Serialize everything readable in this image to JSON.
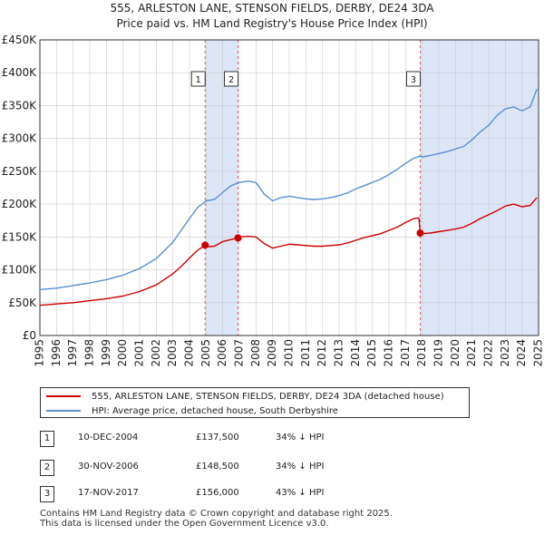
{
  "header": {
    "title_line1": "555, ARLESTON LANE, STENSON FIELDS, DERBY, DE24 3DA",
    "title_line2": "Price paid vs. HM Land Registry's House Price Index (HPI)"
  },
  "colors": {
    "property": "#cc0000",
    "hpi": "#5b8fd0",
    "shade": "#dde6f7",
    "grid": "#cccccc",
    "marker_line": "#d06060"
  },
  "legend": {
    "property_label": "555, ARLESTON LANE, STENSON FIELDS, DERBY, DE24 3DA (detached house)",
    "hpi_label": "HPI: Average price, detached house, South Derbyshire"
  },
  "transactions": [
    {
      "num": "1",
      "date": "10-DEC-2004",
      "price": "£137,500",
      "hpi": "34% ↓ HPI"
    },
    {
      "num": "2",
      "date": "30-NOV-2006",
      "price": "£148,500",
      "hpi": "34% ↓ HPI"
    },
    {
      "num": "3",
      "date": "17-NOV-2017",
      "price": "£156,000",
      "hpi": "43% ↓ HPI"
    }
  ],
  "footer": {
    "line1": "Contains HM Land Registry data © Crown copyright and database right 2025.",
    "line2": "This data is licensed under the Open Government Licence v3.0."
  },
  "chart_data": {
    "type": "line",
    "title": "555, ARLESTON LANE, STENSON FIELDS, DERBY, DE24 3DA — Price paid vs. HM Land Registry's House Price Index (HPI)",
    "xlim": [
      1995,
      2025
    ],
    "ylim": [
      0,
      450000
    ],
    "x_ticks": [
      1995,
      1996,
      1997,
      1998,
      1999,
      2000,
      2001,
      2002,
      2003,
      2004,
      2005,
      2006,
      2007,
      2008,
      2009,
      2010,
      2011,
      2012,
      2013,
      2014,
      2015,
      2016,
      2017,
      2018,
      2019,
      2020,
      2021,
      2022,
      2023,
      2024,
      2025
    ],
    "y_ticks": [
      {
        "value": 0,
        "label": "£0"
      },
      {
        "value": 50000,
        "label": "£50K"
      },
      {
        "value": 100000,
        "label": "£100K"
      },
      {
        "value": 150000,
        "label": "£150K"
      },
      {
        "value": 200000,
        "label": "£200K"
      },
      {
        "value": 250000,
        "label": "£250K"
      },
      {
        "value": 300000,
        "label": "£300K"
      },
      {
        "value": 350000,
        "label": "£350K"
      },
      {
        "value": 400000,
        "label": "£400K"
      },
      {
        "value": 450000,
        "label": "£450K"
      }
    ],
    "shaded_ranges": [
      [
        2004.94,
        2006.92
      ],
      [
        2017.88,
        2025
      ]
    ],
    "sales": [
      {
        "label": "1",
        "x": 2004.94,
        "y": 137500
      },
      {
        "label": "2",
        "x": 2006.92,
        "y": 148500
      },
      {
        "label": "3",
        "x": 2017.88,
        "y": 156000
      }
    ],
    "series": [
      {
        "name": "HPI: Average price, detached house, South Derbyshire",
        "color": "#5b8fd0",
        "x": [
          1995,
          1996,
          1997,
          1998,
          1999,
          2000,
          2001,
          2002,
          2003,
          2003.5,
          2004,
          2004.5,
          2005,
          2005.5,
          2006,
          2006.5,
          2007,
          2007.5,
          2008,
          2008.5,
          2009,
          2009.5,
          2010,
          2010.5,
          2011,
          2011.5,
          2012,
          2012.5,
          2013,
          2013.5,
          2014,
          2014.5,
          2015,
          2015.5,
          2016,
          2016.5,
          2017,
          2017.5,
          2017.88,
          2018,
          2018.5,
          2019,
          2019.5,
          2020,
          2020.5,
          2021,
          2021.5,
          2022,
          2022.5,
          2023,
          2023.5,
          2024,
          2024.5,
          2024.9
        ],
        "y": [
          70000,
          72000,
          76000,
          80000,
          85000,
          92000,
          102000,
          117000,
          142000,
          160000,
          178000,
          195000,
          205000,
          207000,
          218000,
          228000,
          233000,
          235000,
          233000,
          215000,
          205000,
          210000,
          212000,
          210000,
          208000,
          207000,
          208000,
          210000,
          213000,
          217000,
          223000,
          228000,
          233000,
          238000,
          245000,
          253000,
          262000,
          270000,
          273000,
          272000,
          274000,
          277000,
          280000,
          284000,
          288000,
          298000,
          310000,
          320000,
          335000,
          345000,
          348000,
          342000,
          348000,
          375000
        ]
      },
      {
        "name": "555, ARLESTON LANE, STENSON FIELDS, DERBY, DE24 3DA (detached house)",
        "color": "#cc0000",
        "x": [
          1995,
          1996,
          1997,
          1998,
          1999,
          2000,
          2001,
          2002,
          2003,
          2003.5,
          2004,
          2004.5,
          2004.94,
          2005,
          2005.5,
          2006,
          2006.5,
          2006.92,
          2007,
          2007.5,
          2008,
          2008.5,
          2009,
          2009.5,
          2010,
          2010.5,
          2011,
          2011.5,
          2012,
          2012.5,
          2013,
          2013.5,
          2014,
          2014.5,
          2015,
          2015.5,
          2016,
          2016.5,
          2017,
          2017.5,
          2017.8,
          2017.88,
          2018,
          2018.5,
          2019,
          2019.5,
          2020,
          2020.5,
          2021,
          2021.5,
          2022,
          2022.5,
          2023,
          2023.5,
          2024,
          2024.5,
          2024.9
        ],
        "y": [
          46000,
          48000,
          50000,
          53000,
          56000,
          60000,
          67000,
          77000,
          94000,
          105000,
          118000,
          130000,
          137500,
          135000,
          136000,
          143000,
          146000,
          148500,
          150000,
          151000,
          150000,
          140000,
          133000,
          136000,
          139000,
          138000,
          137000,
          136000,
          136000,
          137000,
          138000,
          141000,
          145000,
          149000,
          152000,
          155000,
          160000,
          165000,
          172000,
          178000,
          179000,
          156000,
          155000,
          156000,
          158000,
          160000,
          162000,
          165000,
          171000,
          178000,
          184000,
          190000,
          197000,
          200000,
          196000,
          198000,
          210000
        ]
      }
    ]
  }
}
